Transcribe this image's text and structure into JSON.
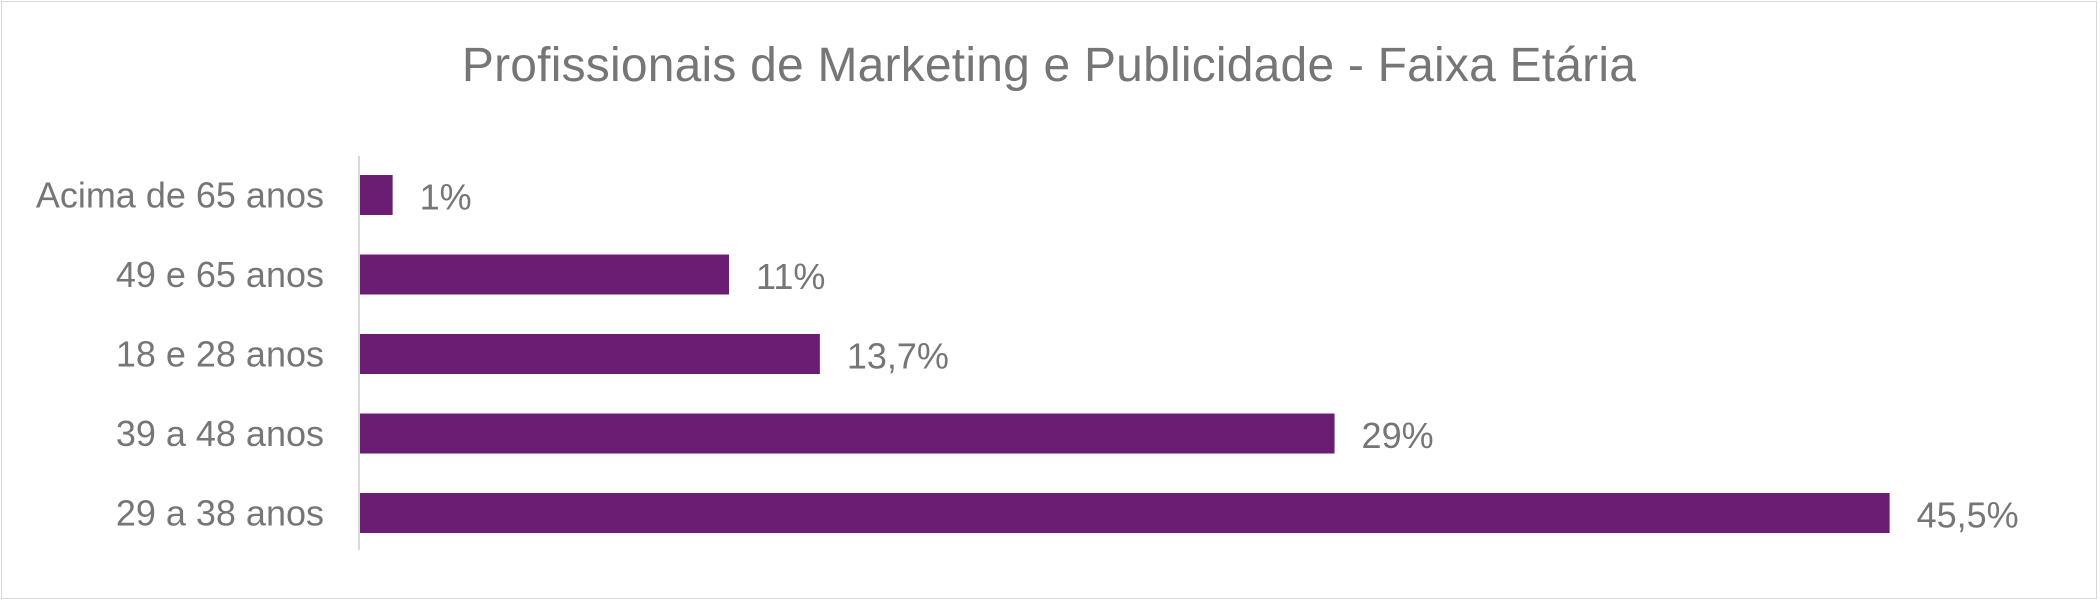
{
  "chart_data": {
    "type": "bar",
    "orientation": "horizontal",
    "title": "Profissionais de Marketing e Publicidade - Faixa Etária",
    "xlabel": "",
    "ylabel": "",
    "categories": [
      "Acima de 65 anos",
      "49 e 65 anos",
      "18 e 28 anos",
      "39 a 48 anos",
      "29 a 38 anos"
    ],
    "values": [
      1,
      11,
      13.7,
      29,
      45.5
    ],
    "data_labels": [
      "1%",
      "11%",
      "13,7%",
      "29%",
      "45,5%"
    ],
    "unit": "%",
    "xlim": [
      0,
      50
    ],
    "grid": false,
    "legend": "none",
    "bar_color": "#6b1d74"
  }
}
